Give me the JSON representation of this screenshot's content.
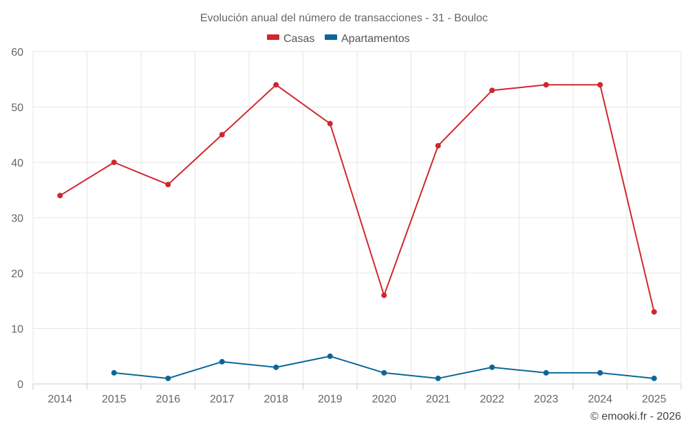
{
  "chart_data": {
    "type": "line",
    "title": "Evolución anual del número de transacciones - 31 - Bouloc",
    "categories": [
      "2014",
      "2015",
      "2016",
      "2017",
      "2018",
      "2019",
      "2020",
      "2021",
      "2022",
      "2023",
      "2024",
      "2025"
    ],
    "y_ticks": [
      "0",
      "10",
      "20",
      "30",
      "40",
      "50",
      "60"
    ],
    "ylim": [
      0,
      60
    ],
    "xlabel": "",
    "ylabel": "",
    "grid": true,
    "legend_position": "top-center",
    "series": [
      {
        "name": "Casas",
        "color": "#d0262d",
        "values": [
          34,
          40,
          36,
          45,
          54,
          47,
          16,
          43,
          53,
          54,
          54,
          13
        ]
      },
      {
        "name": "Apartamentos",
        "color": "#0a6699",
        "values": [
          null,
          2,
          1,
          4,
          3,
          5,
          2,
          1,
          3,
          2,
          2,
          1
        ]
      }
    ],
    "credit": "© emooki.fr - 2026"
  }
}
